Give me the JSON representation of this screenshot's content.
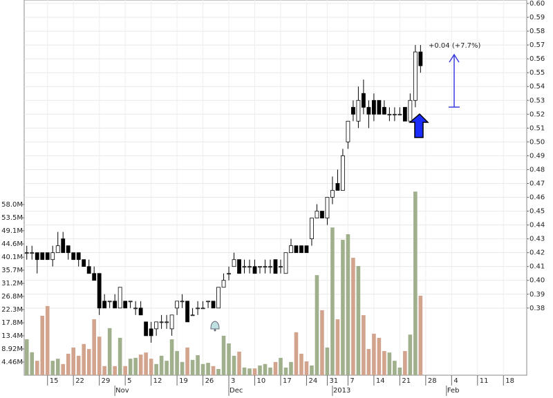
{
  "chart_data": {
    "type": "candlestick",
    "annotation": "+0.04 (+7.7%)",
    "categories": [
      null,
      null,
      null,
      null,
      "15",
      null,
      null,
      null,
      null,
      "22",
      null,
      null,
      null,
      null,
      "29",
      null,
      null,
      null,
      null,
      "5",
      null,
      null,
      null,
      null,
      "12",
      null,
      null,
      null,
      null,
      "19",
      null,
      null,
      null,
      null,
      "26",
      null,
      null,
      null,
      null,
      "3",
      null,
      null,
      null,
      null,
      "10",
      null,
      null,
      null,
      null,
      "17",
      null,
      null,
      null,
      null,
      "24",
      null,
      null,
      null,
      "31",
      null,
      null,
      null,
      "7",
      null,
      null,
      null,
      null,
      "14",
      null,
      null,
      null,
      null,
      "21",
      null,
      null,
      null,
      null,
      "28",
      null,
      null,
      null,
      null,
      "4",
      null,
      null,
      null,
      null,
      "11",
      null,
      null,
      null,
      null,
      "18",
      null,
      null,
      null,
      null
    ],
    "month_labels": [
      null,
      null,
      null,
      null,
      null,
      null,
      null,
      null,
      null,
      null,
      null,
      null,
      null,
      null,
      null,
      null,
      null,
      "Nov",
      null,
      null,
      null,
      null,
      null,
      null,
      null,
      null,
      null,
      null,
      null,
      null,
      null,
      null,
      null,
      null,
      null,
      null,
      null,
      null,
      null,
      "Dec",
      null,
      null,
      null,
      null,
      null,
      null,
      null,
      null,
      null,
      null,
      null,
      null,
      null,
      null,
      null,
      null,
      null,
      null,
      null,
      "2013",
      null,
      null,
      null,
      null,
      null,
      null,
      null,
      null,
      null,
      null,
      null,
      null,
      null,
      null,
      null,
      null,
      null,
      null,
      null,
      null,
      null,
      "Feb",
      null,
      null,
      null,
      null,
      null,
      null,
      null,
      null,
      null,
      null,
      null,
      null,
      null,
      null,
      null
    ],
    "open": [
      0.42,
      0.42,
      0.42,
      0.42,
      0.42,
      0.415,
      0.42,
      0.43,
      0.425,
      0.42,
      0.42,
      0.415,
      0.41,
      0.405,
      0.405,
      0.385,
      0.385,
      0.385,
      0.38,
      0.385,
      0.385,
      0.38,
      0.38,
      0.37,
      0.365,
      0.365,
      0.37,
      0.37,
      0.365,
      0.38,
      0.385,
      0.385,
      0.375,
      0.38,
      0.38,
      0.385,
      0.385,
      0.38,
      0.395,
      0.405,
      0.41,
      0.415,
      0.41,
      0.41,
      0.41,
      0.41,
      0.41,
      0.41,
      0.415,
      0.41,
      0.405,
      0.42,
      0.425,
      0.425,
      0.425,
      0.43,
      0.445,
      0.45,
      0.445,
      0.46,
      0.47,
      0.465,
      0.5,
      0.525,
      0.515,
      0.535,
      0.525,
      0.53,
      0.53,
      0.525,
      0.52,
      0.52,
      0.52,
      0.525,
      0.515,
      0.53,
      0.565,
      null,
      null,
      null,
      null,
      null,
      null,
      null,
      null,
      null,
      null,
      null,
      null,
      null,
      null,
      null,
      null,
      null,
      null,
      null,
      null
    ],
    "high": [
      0.425,
      0.425,
      0.42,
      0.42,
      0.42,
      0.425,
      0.435,
      0.435,
      0.425,
      0.42,
      0.42,
      0.415,
      0.415,
      0.41,
      0.405,
      0.39,
      0.385,
      0.39,
      0.395,
      0.385,
      0.385,
      0.385,
      0.385,
      0.37,
      0.37,
      0.37,
      0.375,
      0.375,
      0.375,
      0.385,
      0.39,
      0.385,
      0.38,
      0.385,
      0.385,
      0.385,
      0.385,
      0.395,
      0.405,
      0.41,
      0.42,
      0.415,
      0.415,
      0.415,
      0.415,
      0.41,
      0.415,
      0.415,
      0.415,
      0.415,
      0.42,
      0.43,
      0.425,
      0.425,
      0.425,
      0.445,
      0.455,
      0.45,
      0.46,
      0.475,
      0.48,
      0.495,
      0.515,
      0.53,
      0.54,
      0.545,
      0.53,
      0.535,
      0.53,
      0.53,
      0.525,
      0.525,
      0.525,
      0.525,
      0.535,
      0.57,
      0.57,
      null,
      null,
      null,
      null,
      null,
      null,
      null,
      null,
      null,
      null,
      null,
      null,
      null,
      null,
      null,
      null,
      null,
      null,
      null,
      null
    ],
    "low": [
      0.415,
      0.415,
      0.405,
      0.415,
      0.415,
      0.41,
      0.42,
      0.42,
      0.415,
      0.415,
      0.41,
      0.41,
      0.405,
      0.4,
      0.375,
      0.38,
      0.38,
      0.38,
      0.38,
      0.38,
      0.38,
      0.375,
      0.375,
      0.36,
      0.355,
      0.36,
      0.365,
      0.365,
      0.36,
      0.375,
      0.38,
      0.37,
      0.375,
      0.375,
      0.38,
      0.38,
      0.38,
      0.38,
      0.395,
      0.4,
      0.41,
      0.405,
      0.405,
      0.405,
      0.405,
      0.405,
      0.405,
      0.405,
      0.405,
      0.405,
      0.405,
      0.42,
      0.42,
      0.42,
      0.42,
      0.425,
      0.445,
      0.445,
      0.44,
      0.455,
      0.465,
      0.465,
      0.495,
      0.515,
      0.51,
      0.52,
      0.51,
      0.515,
      0.52,
      0.52,
      0.515,
      0.515,
      0.52,
      0.515,
      0.515,
      0.525,
      0.55,
      null,
      null,
      null,
      null,
      null,
      null,
      null,
      null,
      null,
      null,
      null,
      null,
      null,
      null,
      null,
      null,
      null,
      null,
      null,
      null
    ],
    "close": [
      0.42,
      0.42,
      0.415,
      0.415,
      0.415,
      0.42,
      0.425,
      0.42,
      0.42,
      0.415,
      0.415,
      0.41,
      0.405,
      0.4,
      0.38,
      0.38,
      0.385,
      0.38,
      0.395,
      0.38,
      0.385,
      0.38,
      0.375,
      0.36,
      0.36,
      0.37,
      0.37,
      0.37,
      0.375,
      0.385,
      0.385,
      0.37,
      0.375,
      0.38,
      0.38,
      0.385,
      0.38,
      0.395,
      0.4,
      0.405,
      0.415,
      0.405,
      0.41,
      0.41,
      0.405,
      0.41,
      0.41,
      0.41,
      0.405,
      0.41,
      0.42,
      0.425,
      0.42,
      0.42,
      0.42,
      0.445,
      0.45,
      0.445,
      0.46,
      0.465,
      0.465,
      0.49,
      0.515,
      0.52,
      0.53,
      0.525,
      0.52,
      0.52,
      0.52,
      0.52,
      0.52,
      0.52,
      0.52,
      0.515,
      0.53,
      0.565,
      0.555,
      null,
      null,
      null,
      null,
      null,
      null,
      null,
      null,
      null,
      null,
      null,
      null,
      null,
      null,
      null,
      null,
      null,
      null,
      null,
      null
    ],
    "volume": [
      12.2,
      7.8,
      4.9,
      20.2,
      23.5,
      4.9,
      5.6,
      3.8,
      7.3,
      9.4,
      6.6,
      10.6,
      8.9,
      19.0,
      13.1,
      3.1,
      16.0,
      3.1,
      12.7,
      3.1,
      5.6,
      5.9,
      7.0,
      7.7,
      5.6,
      3.8,
      6.6,
      4.9,
      12.2,
      8.2,
      4.5,
      9.4,
      5.2,
      6.8,
      3.8,
      4.2,
      3.1,
      2.1,
      13.4,
      10.8,
      6.6,
      8.0,
      2.6,
      2.3,
      2.3,
      3.3,
      3.8,
      2.6,
      4.5,
      5.9,
      2.6,
      4.5,
      14.6,
      7.3,
      4.7,
      3.3,
      34.0,
      22.1,
      9.4,
      50.2,
      19.0,
      46.0,
      47.9,
      39.9,
      37.1,
      20.4,
      8.9,
      14.1,
      12.7,
      8.2,
      7.7,
      4.9,
      2.6,
      8.2,
      13.8,
      62.4,
      27.0,
      null,
      null,
      null,
      null,
      null,
      null,
      null,
      null,
      null,
      null,
      null,
      null,
      null,
      null,
      null,
      null,
      null,
      null,
      null,
      null
    ],
    "ylim": [
      0.3315,
      0.6025
    ],
    "yticks": [
      0.38,
      0.39,
      {
        "value": 0.4,
        "label": "0.40"
      },
      0.41,
      0.42,
      0.43,
      0.44,
      0.45,
      0.46,
      0.47,
      0.48,
      0.49,
      {
        "value": 0.5,
        "label": "0.50"
      },
      0.51,
      0.52,
      0.53,
      0.54,
      0.55,
      0.56,
      0.57,
      0.58,
      0.59,
      {
        "value": 0.6,
        "label": "0.60"
      }
    ],
    "volume_ylim": [
      0,
      127.5
    ],
    "volume_yticks": [
      {
        "value": 4.46,
        "label": "4.46M"
      },
      {
        "value": 8.92,
        "label": "8.92M"
      },
      {
        "value": 13.4,
        "label": "13.4M"
      },
      {
        "value": 17.8,
        "label": "17.8M"
      },
      {
        "value": 22.3,
        "label": "22.3M"
      },
      {
        "value": 26.8,
        "label": "26.8M"
      },
      {
        "value": 31.2,
        "label": "31.2M"
      },
      {
        "value": 35.7,
        "label": "35.7M"
      },
      {
        "value": 40.1,
        "label": "40.1M"
      },
      {
        "value": 44.6,
        "label": "44.6M"
      },
      {
        "value": 49.1,
        "label": "49.1M"
      },
      {
        "value": 53.5,
        "label": "53.5M"
      },
      {
        "value": 58.0,
        "label": "58.0M"
      }
    ],
    "up_color": "#ffffff",
    "down_color": "#000000",
    "volume_up_color": "#a0b08c",
    "volume_down_color": "#d2a48e",
    "annotation_color": "#4646e0",
    "grid": true
  }
}
